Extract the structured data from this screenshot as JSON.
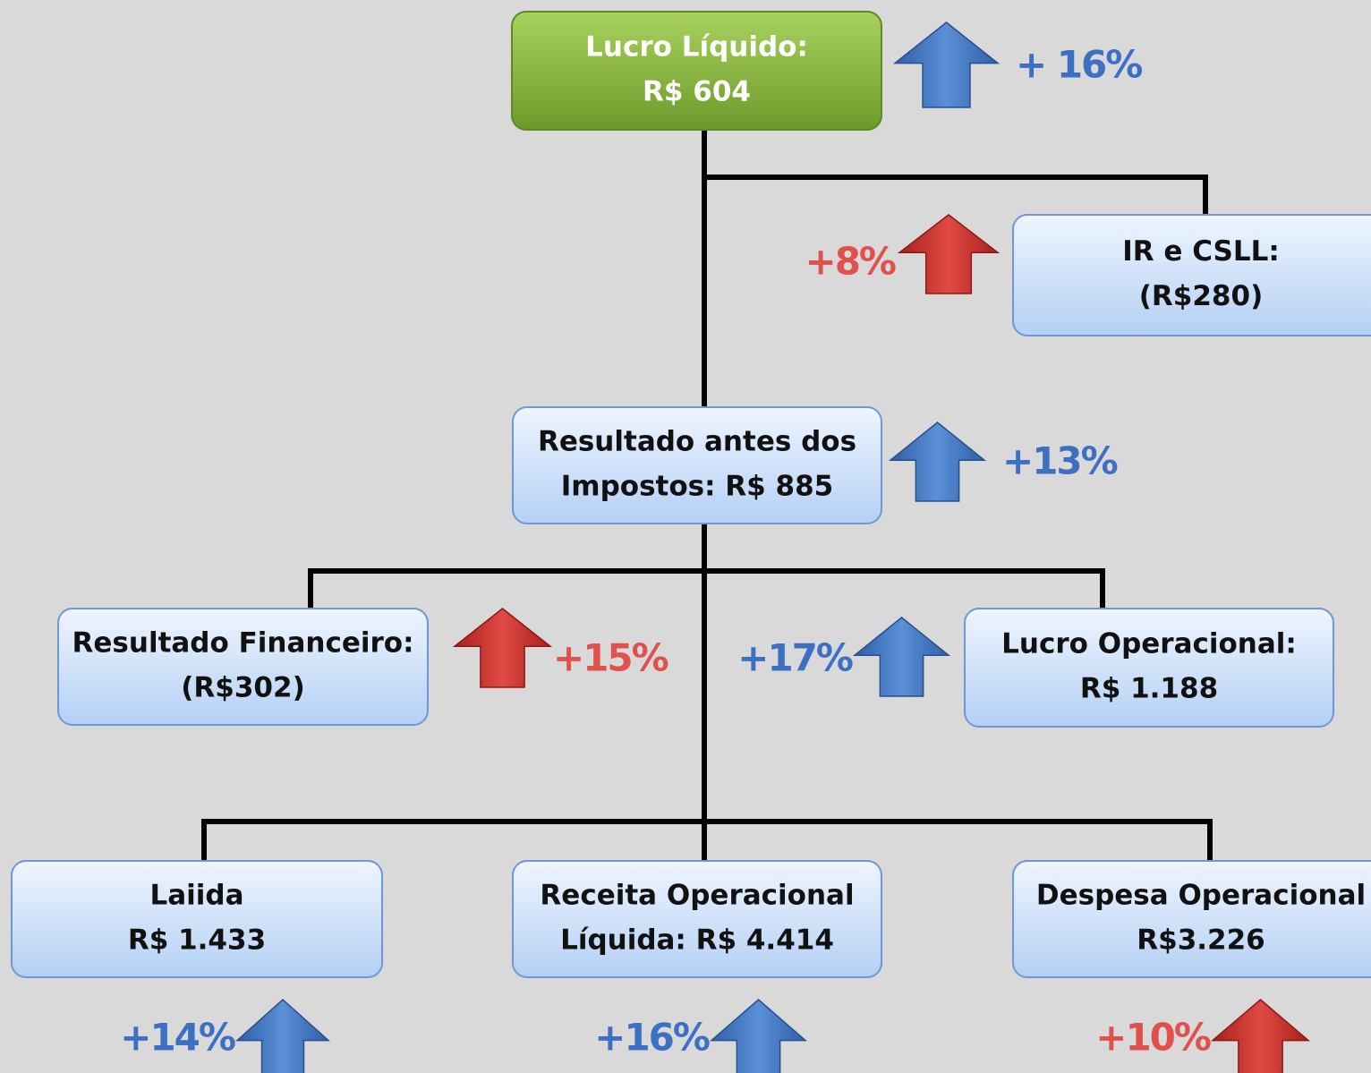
{
  "nodes": [
    {
      "lines": [
        "Lucro Líquido:",
        "R$ 604"
      ],
      "change": "+ 16%",
      "style": "green",
      "change_color": "blue"
    },
    {
      "lines": [
        "IR e CSLL:",
        "(R$280)"
      ],
      "change": "+8%",
      "style": "blue",
      "change_color": "red"
    },
    {
      "lines": [
        "Resultado antes dos",
        "Impostos: R$ 885"
      ],
      "change": "+13%",
      "style": "blue",
      "change_color": "blue"
    },
    {
      "lines": [
        "Resultado Financeiro:",
        "(R$302)"
      ],
      "change": "+15%",
      "style": "blue",
      "change_color": "red"
    },
    {
      "lines": [
        "Lucro Operacional:",
        "R$ 1.188"
      ],
      "change": "+17%",
      "style": "blue",
      "change_color": "blue"
    },
    {
      "lines": [
        "Laiida",
        "R$ 1.433"
      ],
      "change": "+14%",
      "style": "blue",
      "change_color": "blue"
    },
    {
      "lines": [
        "Receita Operacional",
        "Líquida: R$ 4.414"
      ],
      "change": "+16%",
      "style": "blue",
      "change_color": "blue"
    },
    {
      "lines": [
        "Despesa Operacional",
        "R$3.226"
      ],
      "change": "+10%",
      "style": "blue",
      "change_color": "red"
    }
  ]
}
